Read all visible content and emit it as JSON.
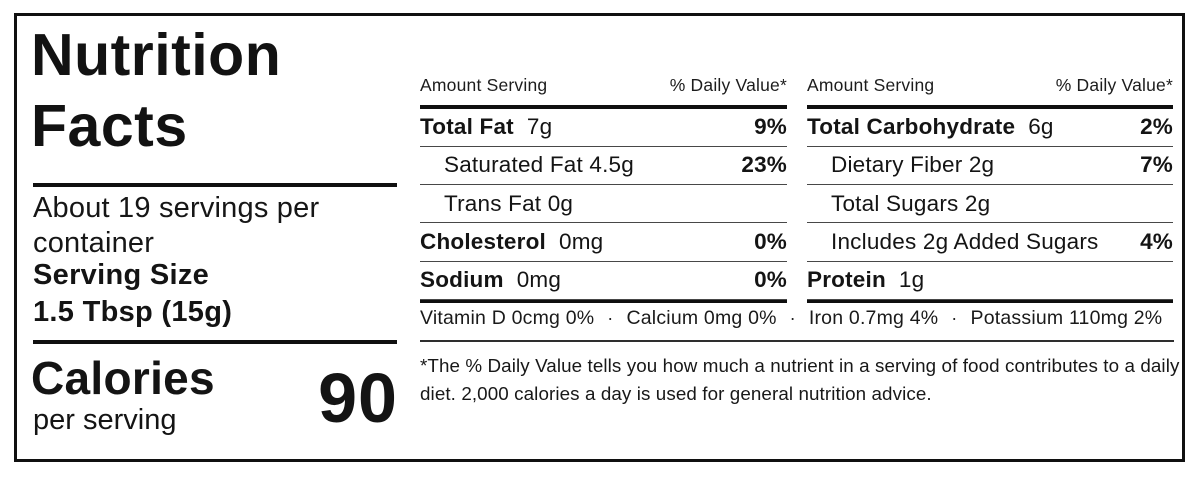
{
  "panel": {
    "title": {
      "line1": "Nutrition",
      "line2": "Facts"
    },
    "servings_per_container": "About 19 servings per container",
    "serving_size_label": "Serving Size",
    "serving_size_value": "1.5 Tbsp (15g)",
    "calories_label": "Calories",
    "calories_sublabel": "per serving",
    "calories_value": "90"
  },
  "columns": [
    {
      "header": {
        "left": "Amount Serving",
        "right": "% Daily Value*"
      },
      "rows": [
        {
          "name": "Total Fat",
          "amount": "7g",
          "dv": "9%"
        },
        {
          "name": "Saturated Fat 4.5g",
          "amount": "",
          "dv": "23%"
        },
        {
          "name": "Trans Fat 0g",
          "amount": "",
          "dv": ""
        },
        {
          "name": "Cholesterol",
          "amount": "0mg",
          "dv": "0%"
        },
        {
          "name": "Sodium",
          "amount": "0mg",
          "dv": "0%"
        }
      ]
    },
    {
      "header": {
        "left": "Amount Serving",
        "right": "% Daily Value*"
      },
      "rows": [
        {
          "name": "Total Carbohydrate",
          "amount": "6g",
          "dv": "2%"
        },
        {
          "name": "Dietary Fiber 2g",
          "amount": "",
          "dv": "7%"
        },
        {
          "name": "Total Sugars 2g",
          "amount": "",
          "dv": ""
        },
        {
          "name": "Includes 2g Added Sugars",
          "amount": "",
          "dv": "4%"
        },
        {
          "name": "Protein",
          "amount": "1g",
          "dv": ""
        }
      ]
    }
  ],
  "micronutrients": {
    "separator": "·",
    "items": [
      "Vitamin D 0cmg 0%",
      "Calcium 0mg 0%",
      "Iron 0.7mg 4%",
      "Potassium 110mg 2%"
    ]
  },
  "footnote": {
    "line1": "*The % Daily Value tells you how much a nutrient in a serving of food contributes to a daily",
    "line2": "diet. 2,000 calories a day is used for general nutrition advice."
  },
  "colors": {
    "text": "#141414",
    "rule": "#101010",
    "background": "#ffffff"
  }
}
